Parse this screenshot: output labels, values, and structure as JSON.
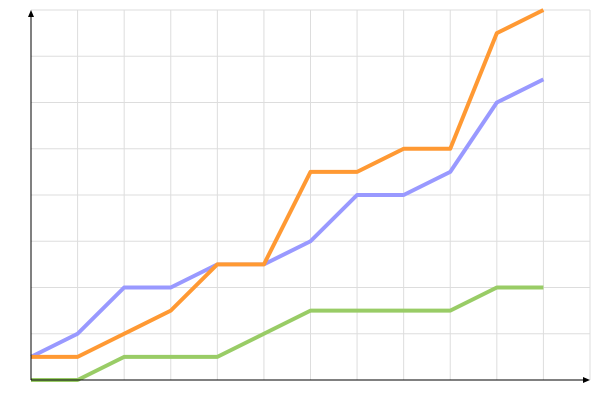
{
  "chart_data": {
    "type": "line",
    "title": "",
    "xlabel": "",
    "ylabel": "",
    "x": [
      0,
      1,
      2,
      3,
      4,
      5,
      6,
      7,
      8,
      9,
      10,
      11
    ],
    "xlim": [
      0,
      12
    ],
    "ylim": [
      0,
      8
    ],
    "grid": true,
    "legend": "none",
    "series": [
      {
        "color": "#9999ff",
        "values": [
          0.5,
          1,
          2,
          2,
          2.5,
          2.5,
          3,
          4,
          4,
          4.5,
          6,
          6.5
        ]
      },
      {
        "color": "#ff9933",
        "values": [
          0.5,
          0.5,
          1,
          1.5,
          2.5,
          2.5,
          4.5,
          4.5,
          5,
          5,
          7.5,
          8
        ]
      },
      {
        "color": "#99cc66",
        "values": [
          0,
          0,
          0.5,
          0.5,
          0.5,
          1,
          1.5,
          1.5,
          1.5,
          1.5,
          2,
          2
        ]
      }
    ]
  }
}
